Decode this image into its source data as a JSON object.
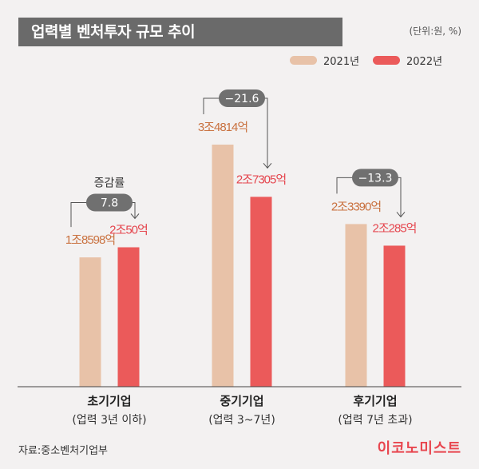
{
  "title": "업력별 벤처투자 규모 추이",
  "unit": "(단위:원, %)",
  "source": "자료:중소벤처기업부",
  "brand": "이코노미스트",
  "colors": {
    "y2021": "#e8c2a8",
    "y2022": "#eb5a5a",
    "label2021": "#c9713f",
    "label2022": "#e5464e",
    "badge": "#707070"
  },
  "chart_data": {
    "type": "bar",
    "categories": [
      "초기기업",
      "중기기업",
      "후기기업"
    ],
    "category_sublabels": [
      "(업력 3년 이하)",
      "(업력 3~7년)",
      "(업력 7년 초과)"
    ],
    "series": [
      {
        "name": "2021년",
        "values": [
          18598,
          34814,
          23390
        ],
        "labels": [
          "1조8598억",
          "3조4814억",
          "2조3390억"
        ]
      },
      {
        "name": "2022년",
        "values": [
          20050,
          27305,
          20285
        ],
        "labels": [
          "2조50억",
          "2조7305억",
          "2조285억"
        ]
      }
    ],
    "change_pct": [
      "7.8",
      "−21.6",
      "−13.3"
    ],
    "change_title": "증감률",
    "unit": "억원"
  }
}
